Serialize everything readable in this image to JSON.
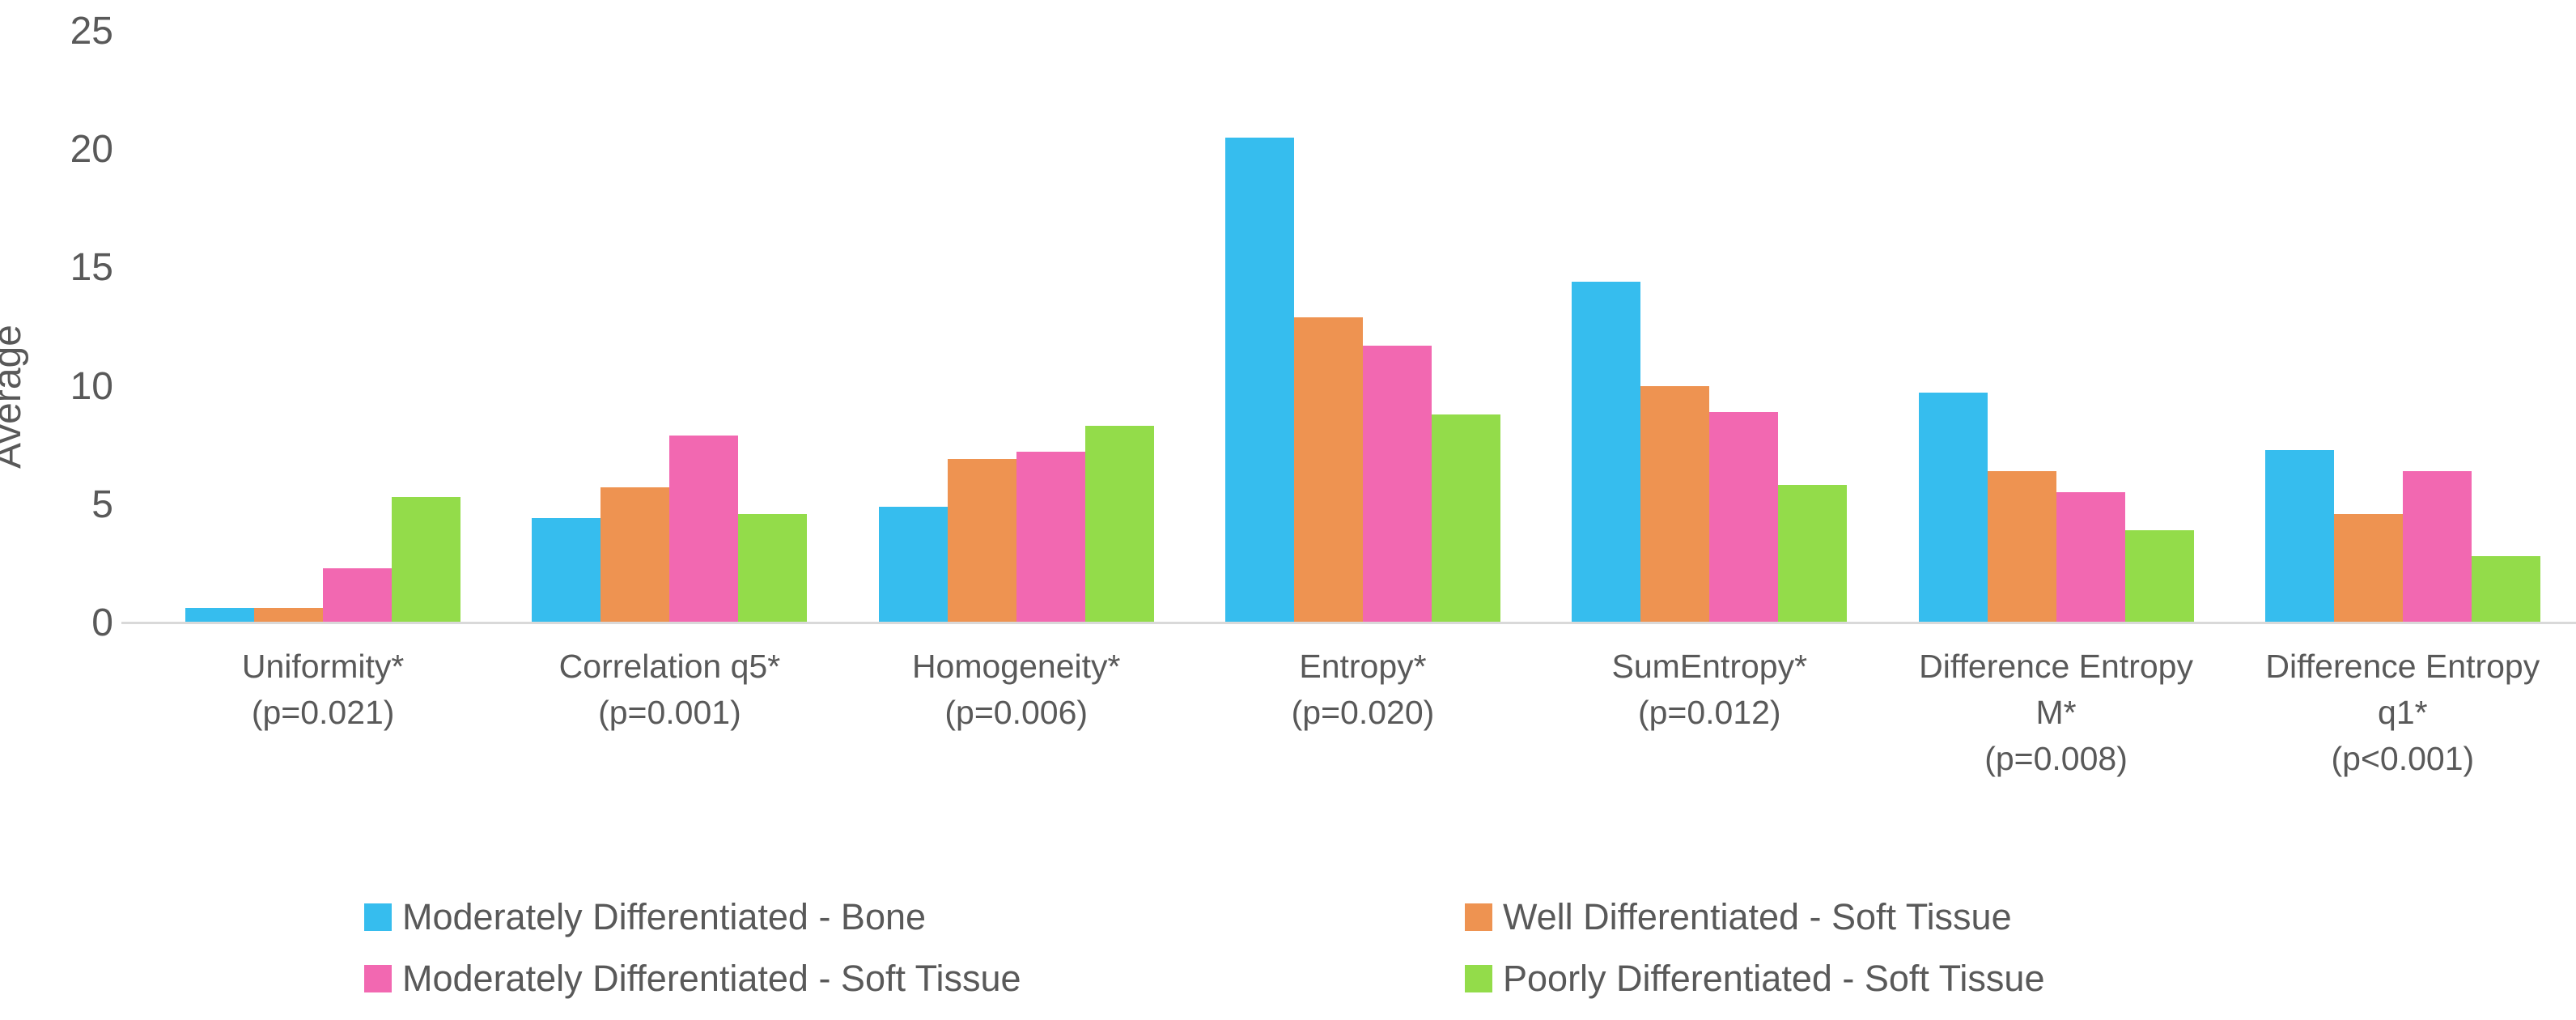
{
  "chart_data": {
    "type": "bar",
    "title": "",
    "y_axis_title": "Average",
    "xlabel": "",
    "ylabel": "Average",
    "ylim": [
      0,
      25
    ],
    "y_ticks": [
      0,
      5,
      10,
      15,
      20,
      25
    ],
    "grid": "off",
    "legend_position": "bottom, two columns",
    "categories": [
      {
        "lines": [
          "Uniformity*",
          "(p=0.021)"
        ]
      },
      {
        "lines": [
          "Correlation q5*",
          "(p=0.001)"
        ]
      },
      {
        "lines": [
          "Homogeneity*",
          "(p=0.006)"
        ]
      },
      {
        "lines": [
          "Entropy*",
          "(p=0.020)"
        ]
      },
      {
        "lines": [
          "SumEntropy*",
          "(p=0.012)"
        ]
      },
      {
        "lines": [
          "Difference Entropy",
          "M*",
          "(p=0.008)"
        ]
      },
      {
        "lines": [
          "Difference Entropy",
          "q1*",
          "(p<0.001)"
        ]
      }
    ],
    "series": [
      {
        "name": "Moderately Differentiated - Bone",
        "color": "#36BDEE",
        "values": [
          0.6,
          4.4,
          4.9,
          20.5,
          14.4,
          9.7,
          7.3
        ]
      },
      {
        "name": "Well Differentiated - Soft Tissue",
        "color": "#EE9351",
        "values": [
          0.6,
          5.7,
          6.9,
          12.9,
          10.0,
          6.4,
          4.6
        ]
      },
      {
        "name": "Moderately Differentiated - Soft Tissue",
        "color": "#F268B1",
        "values": [
          2.3,
          7.9,
          7.2,
          11.7,
          8.9,
          5.5,
          6.4
        ]
      },
      {
        "name": "Poorly Differentiated - Soft Tissue",
        "color": "#93DC4A",
        "values": [
          5.3,
          4.6,
          8.3,
          8.8,
          5.8,
          3.9,
          2.8
        ]
      }
    ],
    "legend_layout": [
      {
        "column": 0,
        "row": 0,
        "series_index": 0
      },
      {
        "column": 0,
        "row": 1,
        "series_index": 2
      },
      {
        "column": 1,
        "row": 0,
        "series_index": 1
      },
      {
        "column": 1,
        "row": 1,
        "series_index": 3
      }
    ]
  },
  "colors": {
    "axis_text": "#595959",
    "axis_line": "#D9D9D9",
    "background": "#FFFFFF"
  }
}
